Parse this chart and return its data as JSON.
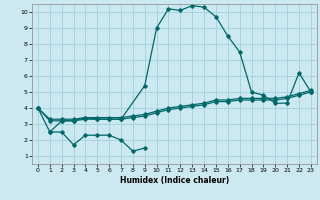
{
  "xlabel": "Humidex (Indice chaleur)",
  "bg_color": "#cce8f0",
  "line_color": "#006868",
  "grid_color": "#99ccdd",
  "xlim": [
    -0.5,
    23.5
  ],
  "ylim": [
    0.5,
    10.5
  ],
  "xticks": [
    0,
    1,
    2,
    3,
    4,
    5,
    6,
    7,
    8,
    9,
    10,
    11,
    12,
    13,
    14,
    15,
    16,
    17,
    18,
    19,
    20,
    21,
    22,
    23
  ],
  "yticks": [
    1,
    2,
    3,
    4,
    5,
    6,
    7,
    8,
    9,
    10
  ],
  "s1x": [
    0,
    1,
    2,
    3,
    4,
    5,
    6,
    7,
    9,
    10,
    11,
    12,
    13,
    14,
    15,
    16,
    17,
    18,
    19,
    20,
    21,
    22,
    23
  ],
  "s1y": [
    4.0,
    2.5,
    3.2,
    3.2,
    3.4,
    3.3,
    3.3,
    3.3,
    5.4,
    9.0,
    10.2,
    10.1,
    10.4,
    10.3,
    9.7,
    8.5,
    7.5,
    5.0,
    4.8,
    4.3,
    4.3,
    6.2,
    5.0
  ],
  "s2x": [
    1,
    2,
    3,
    4,
    5,
    6,
    7,
    8,
    9
  ],
  "s2y": [
    2.5,
    2.5,
    1.7,
    2.3,
    2.3,
    2.3,
    2.0,
    1.3,
    1.5
  ],
  "s3x": [
    0,
    1,
    2,
    3,
    4,
    5,
    6,
    7,
    8,
    9,
    10,
    11,
    12,
    13,
    14,
    15,
    16,
    17,
    18,
    19,
    20,
    21,
    22,
    23
  ],
  "s3y": [
    4.0,
    3.2,
    3.2,
    3.2,
    3.3,
    3.3,
    3.3,
    3.3,
    3.4,
    3.5,
    3.7,
    3.9,
    4.0,
    4.1,
    4.2,
    4.4,
    4.4,
    4.5,
    4.5,
    4.5,
    4.5,
    4.6,
    4.8,
    5.0
  ],
  "s4x": [
    0,
    1,
    2,
    3,
    4,
    5,
    6,
    7,
    8,
    9,
    10,
    11,
    12,
    13,
    14,
    15,
    16,
    17,
    18,
    19,
    20,
    21,
    22,
    23
  ],
  "s4y": [
    4.0,
    3.3,
    3.3,
    3.3,
    3.4,
    3.4,
    3.4,
    3.4,
    3.5,
    3.6,
    3.8,
    4.0,
    4.1,
    4.2,
    4.3,
    4.5,
    4.5,
    4.6,
    4.6,
    4.6,
    4.6,
    4.7,
    4.9,
    5.1
  ]
}
